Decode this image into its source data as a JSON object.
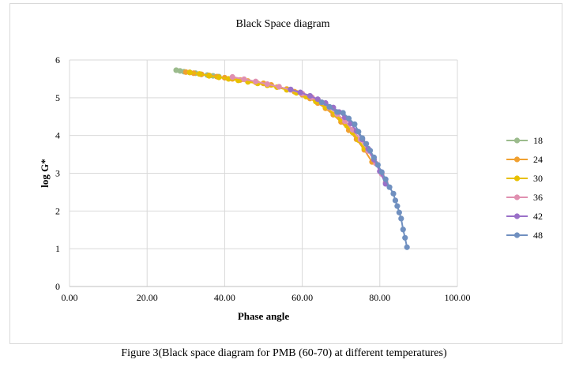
{
  "caption": "Figure 3(Black space diagram for PMB (60-70) at different temperatures)",
  "chart_data": {
    "type": "scatter",
    "title": "Black Space diagram",
    "xlabel": "Phase angle",
    "ylabel": "log G*",
    "xlim": [
      0,
      100
    ],
    "ylim": [
      0,
      6
    ],
    "x_ticks": [
      "0.00",
      "20.00",
      "40.00",
      "60.00",
      "80.00",
      "100.00"
    ],
    "y_ticks": [
      "0",
      "1",
      "2",
      "3",
      "4",
      "5",
      "6"
    ],
    "grid": true,
    "legend_position": "right",
    "series": [
      {
        "name": "18",
        "color": "#9bbb8c",
        "x": [
          27.5,
          28.5,
          29.5,
          31.0,
          32.5,
          34.0,
          35.5,
          37.0,
          38.5
        ],
        "y": [
          5.73,
          5.71,
          5.69,
          5.67,
          5.65,
          5.62,
          5.6,
          5.58,
          5.56
        ]
      },
      {
        "name": "24",
        "color": "#f0a030",
        "x": [
          30.0,
          32.0,
          34.0,
          36.0,
          38.0,
          40.0,
          42.0,
          44.0,
          46.0,
          48.0,
          50.0,
          52.0,
          54.0,
          56.0,
          58.0,
          60.0,
          62.0,
          64.0,
          66.0,
          68.0,
          70.0,
          72.0,
          74.0,
          76.0,
          78.0
        ],
        "y": [
          5.68,
          5.65,
          5.62,
          5.59,
          5.56,
          5.53,
          5.5,
          5.47,
          5.44,
          5.41,
          5.38,
          5.34,
          5.29,
          5.23,
          5.16,
          5.08,
          4.98,
          4.86,
          4.72,
          4.55,
          4.36,
          4.14,
          3.9,
          3.62,
          3.3
        ]
      },
      {
        "name": "30",
        "color": "#e8c000",
        "x": [
          31.0,
          33.5,
          36.0,
          38.5,
          41.0,
          43.5,
          46.0,
          48.5,
          51.0,
          53.5,
          56.0,
          58.5,
          61.0,
          63.5,
          66.0,
          68.5,
          70.0,
          71.5,
          73.0,
          74.5,
          76.0
        ],
        "y": [
          5.67,
          5.63,
          5.58,
          5.54,
          5.5,
          5.46,
          5.42,
          5.38,
          5.33,
          5.28,
          5.21,
          5.13,
          5.03,
          4.9,
          4.75,
          4.56,
          4.42,
          4.26,
          4.08,
          3.88,
          3.66
        ]
      },
      {
        "name": "36",
        "color": "#e090b0",
        "x": [
          42.0,
          45.0,
          48.0,
          51.0,
          54.0,
          57.0,
          60.0,
          62.5,
          65.0,
          67.0,
          69.0,
          71.0,
          73.0,
          75.0,
          77.0,
          79.0,
          80.5,
          81.5
        ],
        "y": [
          5.55,
          5.49,
          5.43,
          5.36,
          5.29,
          5.21,
          5.11,
          5.01,
          4.88,
          4.74,
          4.57,
          4.38,
          4.15,
          3.89,
          3.59,
          3.26,
          2.98,
          2.76
        ]
      },
      {
        "name": "42",
        "color": "#9a70c8",
        "x": [
          57.0,
          59.5,
          62.0,
          64.0,
          66.0,
          68.0,
          69.5,
          71.0,
          72.5,
          74.0,
          75.5,
          77.0,
          78.5,
          80.0,
          81.5
        ],
        "y": [
          5.22,
          5.14,
          5.05,
          4.96,
          4.86,
          4.74,
          4.62,
          4.48,
          4.32,
          4.12,
          3.9,
          3.65,
          3.36,
          3.05,
          2.72
        ]
      },
      {
        "name": "48",
        "color": "#7090c0",
        "x": [
          65.0,
          67.0,
          69.0,
          70.5,
          72.0,
          73.5,
          74.5,
          75.5,
          76.5,
          77.5,
          78.5,
          79.5,
          80.5,
          81.5,
          82.5,
          83.5,
          84.0,
          84.5,
          85.0,
          85.5,
          86.0,
          86.5,
          87.0
        ],
        "y": [
          4.88,
          4.76,
          4.62,
          4.6,
          4.45,
          4.3,
          4.1,
          3.93,
          3.78,
          3.6,
          3.42,
          3.22,
          3.03,
          2.84,
          2.63,
          2.46,
          2.28,
          2.13,
          1.96,
          1.8,
          1.51,
          1.29,
          1.04
        ]
      }
    ]
  }
}
